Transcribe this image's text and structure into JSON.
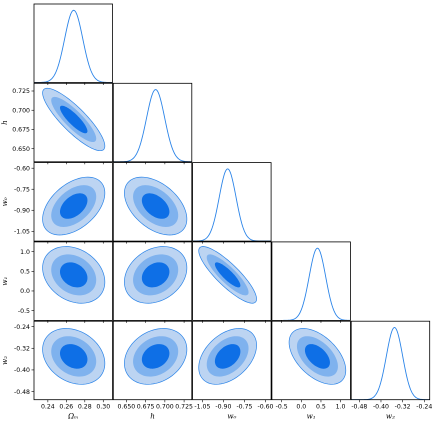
{
  "chart_data": {
    "type": "corner",
    "colors": {
      "line": "#2b84e8",
      "fill_outer": "#bcd4f2",
      "fill_middle": "#7fb2ee",
      "fill_inner": "#0e6fe6"
    },
    "parameters": [
      {
        "key": "om",
        "label": "Ωₘ",
        "range": [
          0.225,
          0.31
        ],
        "ticks": [
          "0.24",
          "0.26",
          "0.28",
          "0.30"
        ],
        "tick_values": [
          0.24,
          0.26,
          0.28,
          0.3
        ],
        "mean": 0.268,
        "sigma": 0.0098
      },
      {
        "key": "h",
        "label": "h",
        "range": [
          0.633,
          0.735
        ],
        "ticks": [
          "0.650",
          "0.675",
          "0.700",
          "0.725"
        ],
        "tick_values": [
          0.65,
          0.675,
          0.7,
          0.725
        ],
        "mean": 0.688,
        "sigma": 0.0118
      },
      {
        "key": "w0",
        "label": "w₀",
        "range": [
          -1.12,
          -0.56
        ],
        "ticks": [
          "-1.05",
          "-0.90",
          "-0.75",
          "-0.60"
        ],
        "tick_values": [
          -1.05,
          -0.9,
          -0.75,
          -0.6
        ],
        "mean": -0.87,
        "sigma": 0.06
      },
      {
        "key": "w1",
        "label": "w₁",
        "range": [
          -0.75,
          1.25
        ],
        "ticks": [
          "-0.5",
          "0.0",
          "0.5",
          "1.0"
        ],
        "tick_values": [
          -0.5,
          0.0,
          0.5,
          1.0
        ],
        "mean": 0.41,
        "sigma": 0.21
      },
      {
        "key": "w2",
        "label": "w₂",
        "range": [
          -0.51,
          -0.22
        ],
        "ticks": [
          "-0.48",
          "-0.40",
          "-0.32",
          "-0.24"
        ],
        "tick_values": [
          -0.48,
          -0.4,
          -0.32,
          -0.24
        ],
        "mean": -0.35,
        "sigma": 0.03
      }
    ],
    "correlations": [
      [
        1,
        -0.85,
        0.45,
        -0.25,
        -0.25
      ],
      [
        -0.85,
        1,
        -0.45,
        0.25,
        0.25
      ],
      [
        0.45,
        -0.45,
        1,
        -0.85,
        0.4
      ],
      [
        -0.25,
        0.25,
        -0.85,
        1,
        -0.5
      ],
      [
        -0.25,
        0.25,
        0.4,
        -0.5,
        1
      ]
    ],
    "contour_levels_sigma": [
      1,
      2,
      3
    ],
    "grid": false
  }
}
